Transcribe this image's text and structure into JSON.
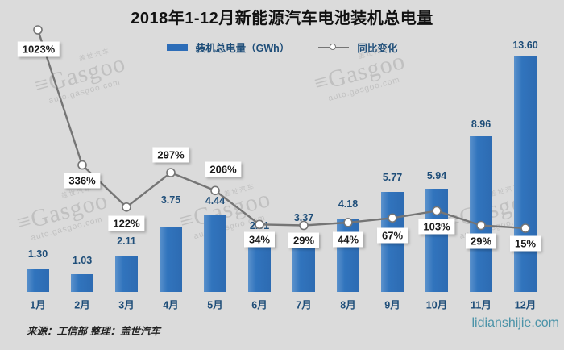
{
  "title": "2018年1-12月新能源汽车电池装机总电量",
  "legend": {
    "bar_label": "装机总电量（GWh）",
    "line_label": "同比变化"
  },
  "source_note": "来源：工信部 整理：盖世汽车",
  "site": "lidianshijie.com",
  "watermark": {
    "top_text": "盖世汽车",
    "brand": "Gasgoo",
    "sub_text": "auto.gasgoo.com"
  },
  "colors": {
    "background": "#dbdbdb",
    "bar_blue": "#2d6db8",
    "label_blue": "#1f4e79",
    "line_gray": "#757575",
    "pct_text": "#1a1a1a",
    "site_teal": "#4b93a8"
  },
  "chart_data": {
    "type": "bar+line",
    "title": "2018年1-12月新能源汽车电池装机总电量",
    "categories": [
      "1月",
      "2月",
      "3月",
      "4月",
      "5月",
      "6月",
      "7月",
      "8月",
      "9月",
      "10月",
      "11月",
      "12月"
    ],
    "series": [
      {
        "name": "装机总电量（GWh）",
        "type": "bar",
        "values": [
          1.3,
          1.03,
          2.11,
          3.75,
          4.44,
          2.91,
          3.37,
          4.18,
          5.77,
          5.94,
          8.96,
          13.6
        ],
        "labels": [
          "1.30",
          "1.03",
          "2.11",
          "3.75",
          "4.44",
          "2.91",
          "3.37",
          "4.18",
          "5.77",
          "5.94",
          "8.96",
          "13.60"
        ]
      },
      {
        "name": "同比变化",
        "type": "line",
        "values_pct": [
          1023,
          336,
          122,
          297,
          206,
          34,
          29,
          44,
          67,
          103,
          29,
          15
        ],
        "labels": [
          "1023%",
          "336%",
          "122%",
          "297%",
          "206%",
          "34%",
          "29%",
          "44%",
          "67%",
          "103%",
          "29%",
          "15%"
        ]
      }
    ],
    "xlabel": "",
    "ylabel": "",
    "value_axis_visible": false,
    "grid": false,
    "legend_position": "top",
    "bar_ylim": [
      0,
      14
    ],
    "line_ylim_pct": [
      0,
      1100
    ]
  }
}
